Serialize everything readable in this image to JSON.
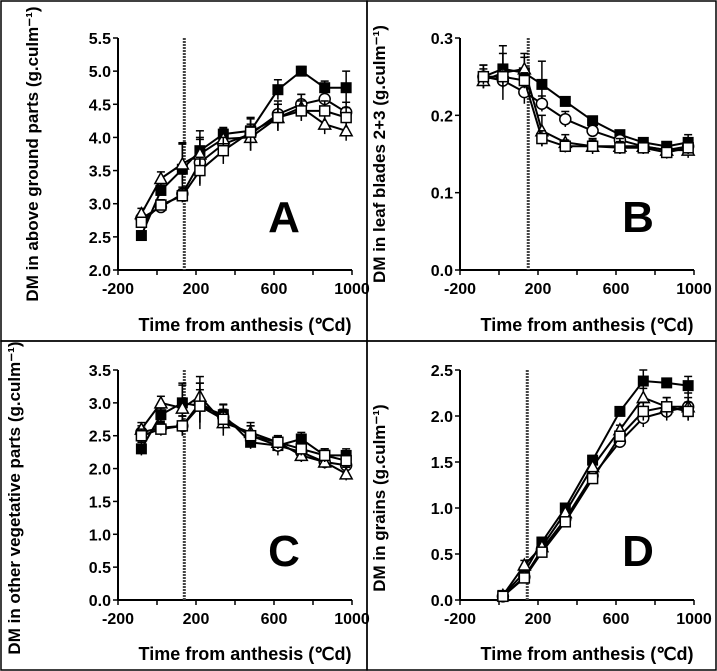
{
  "chart_data": [
    {
      "type": "line",
      "panel_label": "A",
      "ylabel": "DM in above ground parts (g.culm⁻¹)",
      "xlabel": "Time from anthesis (℃d)",
      "xlim": [
        -200,
        1000
      ],
      "ylim": [
        2.0,
        5.5
      ],
      "xticks": [
        "-200",
        "200",
        "600",
        "1000"
      ],
      "yticks": [
        "2.0",
        "2.5",
        "3.0",
        "3.5",
        "4.0",
        "4.5",
        "5.0",
        "5.5"
      ],
      "vline_x": 140,
      "series": [
        {
          "marker": "filled-square",
          "x": [
            -80,
            20,
            130,
            220,
            340,
            480,
            620,
            740,
            860,
            970
          ],
          "y": [
            2.52,
            3.2,
            3.52,
            3.8,
            4.05,
            4.1,
            4.72,
            5.0,
            4.75,
            4.75
          ],
          "err": [
            0.05,
            0.08,
            0.4,
            0.3,
            0.1,
            0.2,
            0.15,
            0.07,
            0.1,
            0.25
          ]
        },
        {
          "marker": "open-circle",
          "x": [
            -80,
            20,
            130,
            220,
            340,
            480,
            620,
            740,
            860,
            970
          ],
          "y": [
            2.78,
            2.95,
            3.15,
            3.62,
            3.9,
            4.05,
            4.35,
            4.5,
            4.58,
            4.38
          ],
          "err": [
            0.07,
            0.08,
            0.1,
            0.35,
            0.2,
            0.25,
            0.2,
            0.15,
            0.2,
            0.15
          ]
        },
        {
          "marker": "open-triangle",
          "x": [
            -80,
            20,
            130,
            220,
            340,
            480,
            620,
            740,
            860,
            970
          ],
          "y": [
            2.85,
            3.38,
            3.6,
            3.75,
            3.98,
            4.0,
            4.3,
            4.45,
            4.2,
            4.1
          ],
          "err": [
            0.08,
            0.1,
            0.3,
            0.25,
            0.15,
            0.2,
            0.2,
            0.2,
            0.15,
            0.15
          ]
        },
        {
          "marker": "open-square",
          "x": [
            -80,
            20,
            130,
            220,
            340,
            480,
            620,
            740,
            860,
            970
          ],
          "y": [
            2.72,
            2.98,
            3.12,
            3.5,
            3.8,
            4.08,
            4.3,
            4.4,
            4.4,
            4.3
          ],
          "err": [
            0.05,
            0.08,
            0.1,
            0.2,
            0.2,
            0.2,
            0.2,
            0.15,
            0.15,
            0.15
          ]
        }
      ]
    },
    {
      "type": "line",
      "panel_label": "B",
      "ylabel": "DM in leaf blades 2+3 (g.culm⁻¹)",
      "xlabel": "Time from anthesis (℃d)",
      "xlim": [
        -200,
        1000
      ],
      "ylim": [
        0.0,
        0.3
      ],
      "xticks": [
        "-200",
        "200",
        "600",
        "1000"
      ],
      "yticks": [
        "0.0",
        "0.1",
        "0.2",
        "0.3"
      ],
      "vline_x": 150,
      "series": [
        {
          "marker": "filled-square",
          "x": [
            -80,
            20,
            130,
            220,
            340,
            480,
            620,
            740,
            860,
            970
          ],
          "y": [
            0.25,
            0.26,
            0.255,
            0.24,
            0.218,
            0.193,
            0.175,
            0.165,
            0.16,
            0.165
          ],
          "err": [
            0.015,
            0.02,
            0.02,
            0.03,
            0.005,
            0.005,
            0.005,
            0.005,
            0.005,
            0.01
          ]
        },
        {
          "marker": "open-circle",
          "x": [
            -80,
            20,
            130,
            220,
            340,
            480,
            620,
            740,
            860,
            970
          ],
          "y": [
            0.25,
            0.245,
            0.23,
            0.215,
            0.195,
            0.18,
            0.168,
            0.16,
            0.155,
            0.16
          ],
          "err": [
            0.015,
            0.01,
            0.015,
            0.01,
            0.01,
            0.008,
            0.008,
            0.008,
            0.008,
            0.008
          ]
        },
        {
          "marker": "open-triangle",
          "x": [
            -80,
            20,
            130,
            220,
            340,
            480,
            620,
            740,
            860,
            970
          ],
          "y": [
            0.245,
            0.255,
            0.26,
            0.18,
            0.165,
            0.16,
            0.16,
            0.16,
            0.155,
            0.155
          ],
          "err": [
            0.01,
            0.035,
            0.02,
            0.02,
            0.01,
            0.01,
            0.01,
            0.01,
            0.01,
            0.01
          ]
        },
        {
          "marker": "open-square",
          "x": [
            -80,
            20,
            130,
            220,
            340,
            480,
            620,
            740,
            860,
            970
          ],
          "y": [
            0.25,
            0.25,
            0.245,
            0.17,
            0.16,
            0.16,
            0.158,
            0.158,
            0.152,
            0.158
          ],
          "err": [
            0.01,
            0.01,
            0.01,
            0.01,
            0.008,
            0.008,
            0.008,
            0.008,
            0.008,
            0.008
          ]
        }
      ]
    },
    {
      "type": "line",
      "panel_label": "C",
      "ylabel": "DM in other vegetative parts (g.culm⁻¹)",
      "xlabel": "Time from anthesis (℃d)",
      "xlim": [
        -200,
        1000
      ],
      "ylim": [
        0.0,
        3.5
      ],
      "xticks": [
        "-200",
        "200",
        "600",
        "1000"
      ],
      "yticks": [
        "0.0",
        "0.5",
        "1.0",
        "1.5",
        "2.0",
        "2.5",
        "3.0",
        "3.5"
      ],
      "vline_x": 140,
      "series": [
        {
          "marker": "filled-square",
          "x": [
            -80,
            20,
            130,
            220,
            340,
            480,
            620,
            740,
            860,
            970
          ],
          "y": [
            2.3,
            2.82,
            3.0,
            2.95,
            2.82,
            2.4,
            2.35,
            2.45,
            2.2,
            2.2
          ],
          "err": [
            0.1,
            0.1,
            0.3,
            0.35,
            0.15,
            0.1,
            0.1,
            0.1,
            0.1,
            0.1
          ]
        },
        {
          "marker": "open-circle",
          "x": [
            -80,
            20,
            130,
            220,
            340,
            480,
            620,
            740,
            860,
            970
          ],
          "y": [
            2.55,
            2.62,
            2.65,
            3.0,
            2.78,
            2.5,
            2.35,
            2.25,
            2.1,
            2.05
          ],
          "err": [
            0.1,
            0.1,
            0.15,
            0.3,
            0.2,
            0.15,
            0.15,
            0.15,
            0.1,
            0.1
          ]
        },
        {
          "marker": "open-triangle",
          "x": [
            -80,
            20,
            130,
            220,
            340,
            480,
            620,
            740,
            860,
            970
          ],
          "y": [
            2.6,
            3.0,
            2.92,
            3.1,
            2.7,
            2.55,
            2.4,
            2.2,
            2.1,
            1.92
          ],
          "err": [
            0.1,
            0.1,
            0.35,
            0.3,
            0.2,
            0.15,
            0.1,
            0.1,
            0.1,
            0.1
          ]
        },
        {
          "marker": "open-square",
          "x": [
            -80,
            20,
            130,
            220,
            340,
            480,
            620,
            740,
            860,
            970
          ],
          "y": [
            2.5,
            2.6,
            2.65,
            2.95,
            2.75,
            2.5,
            2.4,
            2.3,
            2.2,
            2.12
          ],
          "err": [
            0.1,
            0.1,
            0.15,
            0.25,
            0.15,
            0.15,
            0.1,
            0.1,
            0.1,
            0.1
          ]
        }
      ]
    },
    {
      "type": "line",
      "panel_label": "D",
      "ylabel": "DM in grains (g.culm⁻¹)",
      "xlabel": "Time from anthesis (℃d)",
      "xlim": [
        -200,
        1000
      ],
      "ylim": [
        0.0,
        2.5
      ],
      "xticks": [
        "-200",
        "200",
        "600",
        "1000"
      ],
      "yticks": [
        "0.0",
        "0.5",
        "1.0",
        "1.5",
        "2.0",
        "2.5"
      ],
      "vline_x": 145,
      "series": [
        {
          "marker": "filled-square",
          "x": [
            20,
            130,
            220,
            340,
            480,
            620,
            740,
            860,
            970
          ],
          "y": [
            0.05,
            0.3,
            0.63,
            1.0,
            1.52,
            2.05,
            2.38,
            2.36,
            2.33
          ],
          "err": [
            0.02,
            0.05,
            0.05,
            0.05,
            0.05,
            0.05,
            0.12,
            0.05,
            0.1
          ]
        },
        {
          "marker": "open-circle",
          "x": [
            20,
            130,
            220,
            340,
            480,
            620,
            740,
            860,
            970
          ],
          "y": [
            0.04,
            0.25,
            0.55,
            0.88,
            1.35,
            1.72,
            1.98,
            2.05,
            2.1
          ],
          "err": [
            0.02,
            0.05,
            0.05,
            0.05,
            0.05,
            0.05,
            0.1,
            0.1,
            0.15
          ]
        },
        {
          "marker": "open-triangle",
          "x": [
            20,
            130,
            220,
            340,
            480,
            620,
            740,
            860,
            970
          ],
          "y": [
            0.05,
            0.38,
            0.58,
            0.95,
            1.45,
            1.85,
            2.2,
            2.1,
            2.1
          ],
          "err": [
            0.02,
            0.05,
            0.05,
            0.05,
            0.05,
            0.05,
            0.1,
            0.1,
            0.1
          ]
        },
        {
          "marker": "open-square",
          "x": [
            20,
            130,
            220,
            340,
            480,
            620,
            740,
            860,
            970
          ],
          "y": [
            0.04,
            0.24,
            0.52,
            0.85,
            1.32,
            1.78,
            2.05,
            2.1,
            2.05
          ],
          "err": [
            0.02,
            0.05,
            0.05,
            0.05,
            0.05,
            0.05,
            0.1,
            0.1,
            0.1
          ]
        }
      ]
    }
  ]
}
